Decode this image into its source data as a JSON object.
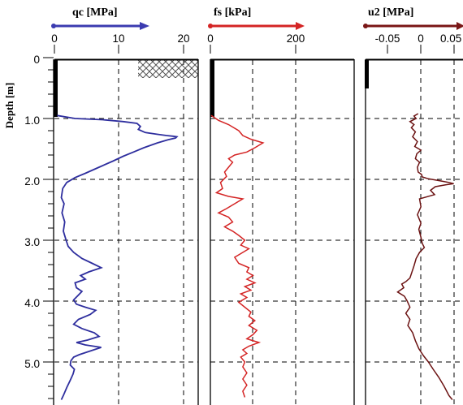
{
  "y_axis": {
    "label": "Depth [m]",
    "ticks": [
      "0",
      "1.0",
      "2.0",
      "3.0",
      "4.0",
      "5.0"
    ]
  },
  "panels": [
    {
      "title": "qc [MPa]",
      "ticks": [
        "0",
        "10",
        "20"
      ],
      "color": "#2e2e9e",
      "arrow_color": "#3b3bb0"
    },
    {
      "title": "fs [kPa]",
      "ticks": [
        "0",
        "200"
      ],
      "color": "#d42424",
      "arrow_color": "#d42424"
    },
    {
      "title": "u2 [MPa]",
      "ticks": [
        "-0.05",
        "0",
        "0.05"
      ],
      "color": "#6b1212",
      "arrow_color": "#7a1616"
    }
  ],
  "chart_data": [
    {
      "type": "line",
      "name": "qc",
      "x_unit": "MPa",
      "y_unit": "m",
      "xlim": [
        0,
        20.9
      ],
      "ylim": [
        0,
        5.6
      ],
      "grid": true,
      "predrill_depth": 0.95,
      "points": [
        [
          0.4,
          0.95
        ],
        [
          3,
          1.0
        ],
        [
          7,
          1.02
        ],
        [
          10,
          1.05
        ],
        [
          12,
          1.08
        ],
        [
          12.5,
          1.13
        ],
        [
          12.2,
          1.18
        ],
        [
          13.2,
          1.23
        ],
        [
          15,
          1.26
        ],
        [
          16.3,
          1.28
        ],
        [
          17.2,
          1.29
        ],
        [
          17.8,
          1.3
        ],
        [
          17.6,
          1.32
        ],
        [
          16.5,
          1.35
        ],
        [
          15,
          1.4
        ],
        [
          13,
          1.48
        ],
        [
          11.5,
          1.55
        ],
        [
          10,
          1.62
        ],
        [
          8.5,
          1.7
        ],
        [
          6.5,
          1.8
        ],
        [
          4.5,
          1.9
        ],
        [
          3,
          1.97
        ],
        [
          1.8,
          2.05
        ],
        [
          1.2,
          2.15
        ],
        [
          1.0,
          2.3
        ],
        [
          1.4,
          2.4
        ],
        [
          1.1,
          2.55
        ],
        [
          1.5,
          2.7
        ],
        [
          1.3,
          2.85
        ],
        [
          1.7,
          3.0
        ],
        [
          2.0,
          3.1
        ],
        [
          2.8,
          3.2
        ],
        [
          4.0,
          3.3
        ],
        [
          5.5,
          3.38
        ],
        [
          6.8,
          3.45
        ],
        [
          5.0,
          3.52
        ],
        [
          3.8,
          3.58
        ],
        [
          4.5,
          3.64
        ],
        [
          3.0,
          3.7
        ],
        [
          3.2,
          3.78
        ],
        [
          4.0,
          3.84
        ],
        [
          3.5,
          3.9
        ],
        [
          2.8,
          3.98
        ],
        [
          3.2,
          4.05
        ],
        [
          4.5,
          4.1
        ],
        [
          6.0,
          4.15
        ],
        [
          5.2,
          4.22
        ],
        [
          3.5,
          4.3
        ],
        [
          2.8,
          4.38
        ],
        [
          4.0,
          4.45
        ],
        [
          5.8,
          4.52
        ],
        [
          6.5,
          4.58
        ],
        [
          4.8,
          4.64
        ],
        [
          3.2,
          4.68
        ],
        [
          4.5,
          4.72
        ],
        [
          6.8,
          4.76
        ],
        [
          5.2,
          4.82
        ],
        [
          3.6,
          4.88
        ],
        [
          2.8,
          4.92
        ],
        [
          2.4,
          4.98
        ],
        [
          2.3,
          5.05
        ],
        [
          2.9,
          5.12
        ],
        [
          2.7,
          5.2
        ],
        [
          2.3,
          5.3
        ],
        [
          1.8,
          5.42
        ],
        [
          1.3,
          5.55
        ],
        [
          1.0,
          5.62
        ]
      ]
    },
    {
      "type": "line",
      "name": "fs",
      "x_unit": "kPa",
      "y_unit": "m",
      "xlim": [
        0,
        355
      ],
      "ylim": [
        0,
        5.6
      ],
      "grid": true,
      "predrill_depth": 0.95,
      "points": [
        [
          2,
          0.95
        ],
        [
          20,
          1.03
        ],
        [
          45,
          1.1
        ],
        [
          70,
          1.2
        ],
        [
          80,
          1.28
        ],
        [
          100,
          1.34
        ],
        [
          130,
          1.4
        ],
        [
          110,
          1.48
        ],
        [
          90,
          1.55
        ],
        [
          60,
          1.6
        ],
        [
          45,
          1.66
        ],
        [
          55,
          1.72
        ],
        [
          45,
          1.8
        ],
        [
          35,
          1.88
        ],
        [
          40,
          1.95
        ],
        [
          25,
          2.05
        ],
        [
          30,
          2.15
        ],
        [
          15,
          2.22
        ],
        [
          45,
          2.28
        ],
        [
          80,
          2.32
        ],
        [
          60,
          2.4
        ],
        [
          40,
          2.48
        ],
        [
          20,
          2.55
        ],
        [
          45,
          2.62
        ],
        [
          55,
          2.7
        ],
        [
          35,
          2.78
        ],
        [
          55,
          2.85
        ],
        [
          70,
          2.92
        ],
        [
          85,
          3.0
        ],
        [
          75,
          3.08
        ],
        [
          95,
          3.14
        ],
        [
          80,
          3.2
        ],
        [
          60,
          3.28
        ],
        [
          70,
          3.38
        ],
        [
          95,
          3.45
        ],
        [
          90,
          3.52
        ],
        [
          105,
          3.58
        ],
        [
          90,
          3.64
        ],
        [
          110,
          3.7
        ],
        [
          85,
          3.76
        ],
        [
          100,
          3.82
        ],
        [
          75,
          3.88
        ],
        [
          90,
          3.94
        ],
        [
          70,
          4.02
        ],
        [
          85,
          4.1
        ],
        [
          100,
          4.18
        ],
        [
          95,
          4.25
        ],
        [
          110,
          4.32
        ],
        [
          95,
          4.4
        ],
        [
          115,
          4.48
        ],
        [
          105,
          4.55
        ],
        [
          90,
          4.62
        ],
        [
          120,
          4.68
        ],
        [
          95,
          4.74
        ],
        [
          80,
          4.8
        ],
        [
          90,
          4.86
        ],
        [
          75,
          4.92
        ],
        [
          85,
          5.0
        ],
        [
          80,
          5.08
        ],
        [
          90,
          5.18
        ],
        [
          80,
          5.28
        ],
        [
          90,
          5.38
        ],
        [
          80,
          5.48
        ],
        [
          85,
          5.58
        ]
      ]
    },
    {
      "type": "line",
      "name": "u2",
      "x_unit": "MPa",
      "y_unit": "m",
      "xlim": [
        -0.093,
        0.075
      ],
      "ylim": [
        0,
        5.6
      ],
      "grid": true,
      "predrill_depth": 0.95,
      "points": [
        [
          0.0,
          0.92
        ],
        [
          -0.006,
          0.96
        ],
        [
          -0.003,
          1.0
        ],
        [
          -0.012,
          1.05
        ],
        [
          -0.006,
          1.1
        ],
        [
          -0.01,
          1.15
        ],
        [
          -0.004,
          1.22
        ],
        [
          -0.008,
          1.3
        ],
        [
          -0.001,
          1.38
        ],
        [
          -0.005,
          1.46
        ],
        [
          0.004,
          1.52
        ],
        [
          -0.002,
          1.58
        ],
        [
          -0.004,
          1.66
        ],
        [
          0.002,
          1.72
        ],
        [
          -0.001,
          1.8
        ],
        [
          0.0,
          1.88
        ],
        [
          0.005,
          1.92
        ],
        [
          0.006,
          1.96
        ],
        [
          0.015,
          1.99
        ],
        [
          0.025,
          2.01
        ],
        [
          0.035,
          2.03
        ],
        [
          0.045,
          2.05
        ],
        [
          0.052,
          2.07
        ],
        [
          0.04,
          2.09
        ],
        [
          0.025,
          2.12
        ],
        [
          0.018,
          2.18
        ],
        [
          0.024,
          2.25
        ],
        [
          0.002,
          2.32
        ],
        [
          0.004,
          2.45
        ],
        [
          -0.001,
          2.58
        ],
        [
          0.004,
          2.72
        ],
        [
          0.001,
          2.82
        ],
        [
          0.004,
          2.95
        ],
        [
          0.006,
          3.05
        ],
        [
          0.009,
          3.12
        ],
        [
          0.002,
          3.2
        ],
        [
          -0.003,
          3.3
        ],
        [
          -0.006,
          3.42
        ],
        [
          -0.009,
          3.52
        ],
        [
          -0.012,
          3.62
        ],
        [
          -0.018,
          3.68
        ],
        [
          -0.024,
          3.72
        ],
        [
          -0.021,
          3.78
        ],
        [
          -0.03,
          3.85
        ],
        [
          -0.02,
          3.92
        ],
        [
          -0.016,
          4.0
        ],
        [
          -0.012,
          4.1
        ],
        [
          -0.018,
          4.2
        ],
        [
          -0.012,
          4.3
        ],
        [
          -0.015,
          4.4
        ],
        [
          -0.008,
          4.52
        ],
        [
          -0.004,
          4.65
        ],
        [
          0.001,
          4.78
        ],
        [
          0.008,
          4.9
        ],
        [
          0.015,
          5.0
        ],
        [
          0.022,
          5.12
        ],
        [
          0.03,
          5.25
        ],
        [
          0.038,
          5.4
        ],
        [
          0.045,
          5.55
        ],
        [
          0.05,
          5.62
        ]
      ]
    }
  ]
}
